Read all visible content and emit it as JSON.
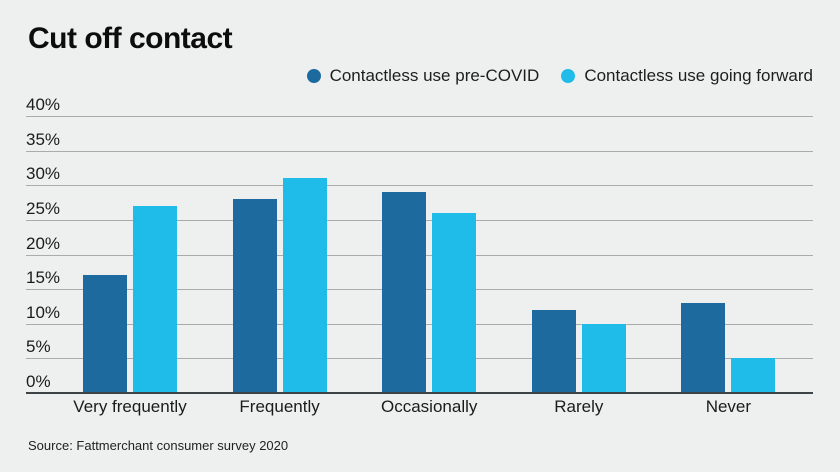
{
  "header": {
    "title": "Cut off contact"
  },
  "legend": {
    "items": [
      {
        "label": "Contactless use pre-COVID",
        "color": "#1d6a9e"
      },
      {
        "label": "Contactless use going forward",
        "color": "#1fbce9"
      }
    ]
  },
  "chart_data": {
    "type": "bar",
    "title": "Cut off contact",
    "categories": [
      "Very frequently",
      "Frequently",
      "Occasionally",
      "Rarely",
      "Never"
    ],
    "series": [
      {
        "name": "Contactless use pre-COVID",
        "color": "#1d6a9e",
        "values": [
          17,
          28,
          29,
          12,
          13
        ]
      },
      {
        "name": "Contactless use going forward",
        "color": "#1fbce9",
        "values": [
          27,
          31,
          26,
          10,
          5
        ]
      }
    ],
    "ylim": [
      0,
      40
    ],
    "yticks": [
      {
        "value": 0,
        "label": "0%"
      },
      {
        "value": 5,
        "label": "5%"
      },
      {
        "value": 10,
        "label": "10%"
      },
      {
        "value": 15,
        "label": "15%"
      },
      {
        "value": 20,
        "label": "20%"
      },
      {
        "value": 25,
        "label": "25%"
      },
      {
        "value": 30,
        "label": "30%"
      },
      {
        "value": 35,
        "label": "35%"
      },
      {
        "value": 40,
        "label": "40%"
      }
    ],
    "grid": "horizontal",
    "legend_position": "top"
  },
  "footer": {
    "source": "Source: Fattmerchant consumer survey 2020"
  },
  "colors": {
    "background": "#eef0f0",
    "gridline": "#a8acac",
    "baseline": "#3e4346",
    "text": "#1a1a1a"
  }
}
